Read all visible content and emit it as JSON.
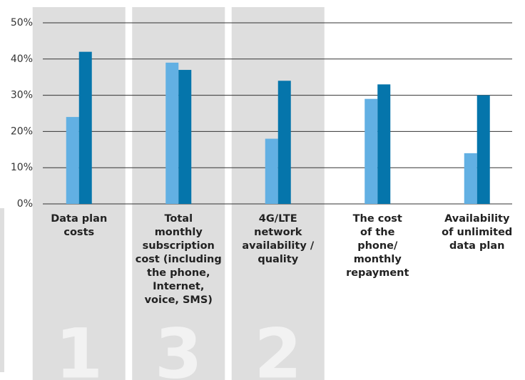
{
  "chart_data": {
    "type": "bar",
    "categories": [
      "Data plan\ncosts",
      "Total\nmonthly\nsubscription\ncost (including\nthe phone,\nInternet,\nvoice, SMS)",
      "4G/LTE\nnetwork\navailability /\nquality",
      "The cost\nof the\nphone/\nmonthly\nrepayment",
      "Availability\nof unlimited\ndata plan"
    ],
    "series": [
      {
        "color": "#62b0e3",
        "values": [
          24,
          39,
          18,
          29,
          14
        ]
      },
      {
        "color": "#0575ab",
        "values": [
          42,
          37,
          34,
          33,
          30
        ]
      }
    ],
    "ranks": [
      1,
      3,
      2,
      null,
      null
    ],
    "ylim": [
      0,
      50
    ],
    "yticks": [
      {
        "value": 0,
        "label": "0%"
      },
      {
        "value": 10,
        "label": "10%"
      },
      {
        "value": 20,
        "label": "20%"
      },
      {
        "value": 30,
        "label": "30%"
      },
      {
        "value": 40,
        "label": "40%"
      },
      {
        "value": 50,
        "label": "50%"
      }
    ],
    "grid": true
  }
}
